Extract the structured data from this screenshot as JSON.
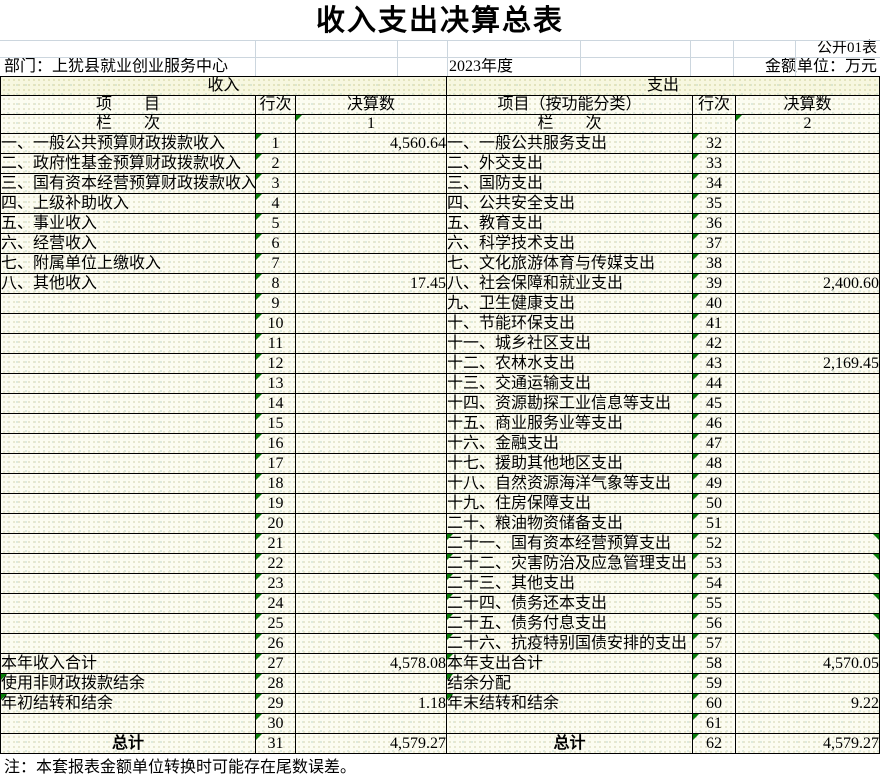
{
  "title": "收入支出决算总表",
  "meta": {
    "sheet_label": "公开01表",
    "department": "部门：上犹县就业创业服务中心",
    "year": "2023年度",
    "unit": "金额单位：万元"
  },
  "note": "注：本套报表金额单位转换时可能存在尾数误差。",
  "colors": {
    "comment_marker": "#077c07",
    "cell_background": "#fbfbef",
    "header_band_background": "#f6f6df",
    "faint_gridline": "#ccd6de",
    "border": "#000000"
  },
  "income": {
    "section_title": "收入",
    "headers": {
      "item": "项　　目",
      "line": "行次",
      "amount": "决算数"
    },
    "column_row": {
      "label": "栏　　次",
      "col": "1"
    },
    "rows": [
      {
        "label": "一、一般公共预算财政拨款收入",
        "line": "1",
        "value": "4,560.64"
      },
      {
        "label": "二、政府性基金预算财政拨款收入",
        "line": "2",
        "value": ""
      },
      {
        "label": "三、国有资本经营预算财政拨款收入",
        "line": "3",
        "value": ""
      },
      {
        "label": "四、上级补助收入",
        "line": "4",
        "value": ""
      },
      {
        "label": "五、事业收入",
        "line": "5",
        "value": ""
      },
      {
        "label": "六、经营收入",
        "line": "6",
        "value": ""
      },
      {
        "label": "七、附属单位上缴收入",
        "line": "7",
        "value": ""
      },
      {
        "label": "八、其他收入",
        "line": "8",
        "value": "17.45"
      },
      {
        "label": "",
        "line": "9",
        "value": ""
      },
      {
        "label": "",
        "line": "10",
        "value": ""
      },
      {
        "label": "",
        "line": "11",
        "value": ""
      },
      {
        "label": "",
        "line": "12",
        "value": ""
      },
      {
        "label": "",
        "line": "13",
        "value": ""
      },
      {
        "label": "",
        "line": "14",
        "value": ""
      },
      {
        "label": "",
        "line": "15",
        "value": ""
      },
      {
        "label": "",
        "line": "16",
        "value": ""
      },
      {
        "label": "",
        "line": "17",
        "value": ""
      },
      {
        "label": "",
        "line": "18",
        "value": ""
      },
      {
        "label": "",
        "line": "19",
        "value": ""
      },
      {
        "label": "",
        "line": "20",
        "value": ""
      },
      {
        "label": "",
        "line": "21",
        "value": ""
      },
      {
        "label": "",
        "line": "22",
        "value": ""
      },
      {
        "label": "",
        "line": "23",
        "value": ""
      },
      {
        "label": "",
        "line": "24",
        "value": ""
      },
      {
        "label": "",
        "line": "25",
        "value": ""
      },
      {
        "label": "",
        "line": "26",
        "value": ""
      },
      {
        "label": "本年收入合计",
        "line": "27",
        "value": "4,578.08"
      },
      {
        "label": "使用非财政拨款结余",
        "line": "28",
        "value": "",
        "indent": true,
        "lm": true
      },
      {
        "label": "年初结转和结余",
        "line": "29",
        "value": "1.18",
        "indent": true,
        "lm": true
      },
      {
        "label": "",
        "line": "30",
        "value": ""
      },
      {
        "label": "总计",
        "line": "31",
        "value": "4,579.27",
        "total": true
      }
    ]
  },
  "expenditure": {
    "section_title": "支出",
    "headers": {
      "item": "项目（按功能分类）",
      "line": "行次",
      "amount": "决算数"
    },
    "column_row": {
      "label": "栏　　次",
      "col": "2"
    },
    "rows": [
      {
        "label": "一、一般公共服务支出",
        "line": "32",
        "value": ""
      },
      {
        "label": "二、外交支出",
        "line": "33",
        "value": ""
      },
      {
        "label": "三、国防支出",
        "line": "34",
        "value": ""
      },
      {
        "label": "四、公共安全支出",
        "line": "35",
        "value": ""
      },
      {
        "label": "五、教育支出",
        "line": "36",
        "value": ""
      },
      {
        "label": "六、科学技术支出",
        "line": "37",
        "value": ""
      },
      {
        "label": "七、文化旅游体育与传媒支出",
        "line": "38",
        "value": ""
      },
      {
        "label": "八、社会保障和就业支出",
        "line": "39",
        "value": "2,400.60"
      },
      {
        "label": "九、卫生健康支出",
        "line": "40",
        "value": ""
      },
      {
        "label": "十、节能环保支出",
        "line": "41",
        "value": ""
      },
      {
        "label": "十一、城乡社区支出",
        "line": "42",
        "value": ""
      },
      {
        "label": "十二、农林水支出",
        "line": "43",
        "value": "2,169.45"
      },
      {
        "label": "十三、交通运输支出",
        "line": "44",
        "value": ""
      },
      {
        "label": "十四、资源勘探工业信息等支出",
        "line": "45",
        "value": ""
      },
      {
        "label": "十五、商业服务业等支出",
        "line": "46",
        "value": ""
      },
      {
        "label": "十六、金融支出",
        "line": "47",
        "value": ""
      },
      {
        "label": "十七、援助其他地区支出",
        "line": "48",
        "value": ""
      },
      {
        "label": "十八、自然资源海洋气象等支出",
        "line": "49",
        "value": ""
      },
      {
        "label": "十九、住房保障支出",
        "line": "50",
        "value": ""
      },
      {
        "label": "二十、粮油物资储备支出",
        "line": "51",
        "value": ""
      },
      {
        "label": "二十一、国有资本经营预算支出",
        "line": "52",
        "value": "",
        "lm": true,
        "vm": true
      },
      {
        "label": "二十二、灾害防治及应急管理支出",
        "line": "53",
        "value": "",
        "lm": true,
        "vm": true
      },
      {
        "label": "二十三、其他支出",
        "line": "54",
        "value": "",
        "lm": true,
        "vm": true
      },
      {
        "label": "二十四、债务还本支出",
        "line": "55",
        "value": "",
        "lm": true,
        "vm": true
      },
      {
        "label": "二十五、债务付息支出",
        "line": "56",
        "value": "",
        "lm": true,
        "vm": true
      },
      {
        "label": "二十六、抗疫特别国债安排的支出",
        "line": "57",
        "value": "",
        "lm": true,
        "vm": true
      },
      {
        "label": "本年支出合计",
        "line": "58",
        "value": "4,570.05",
        "lm": true
      },
      {
        "label": "结余分配",
        "line": "59",
        "value": "",
        "indent": true,
        "lm": true
      },
      {
        "label": "年末结转和结余",
        "line": "60",
        "value": "9.22",
        "indent": true,
        "lm": true
      },
      {
        "label": "",
        "line": "61",
        "value": ""
      },
      {
        "label": "总计",
        "line": "62",
        "value": "4,579.27",
        "total": true
      }
    ]
  }
}
